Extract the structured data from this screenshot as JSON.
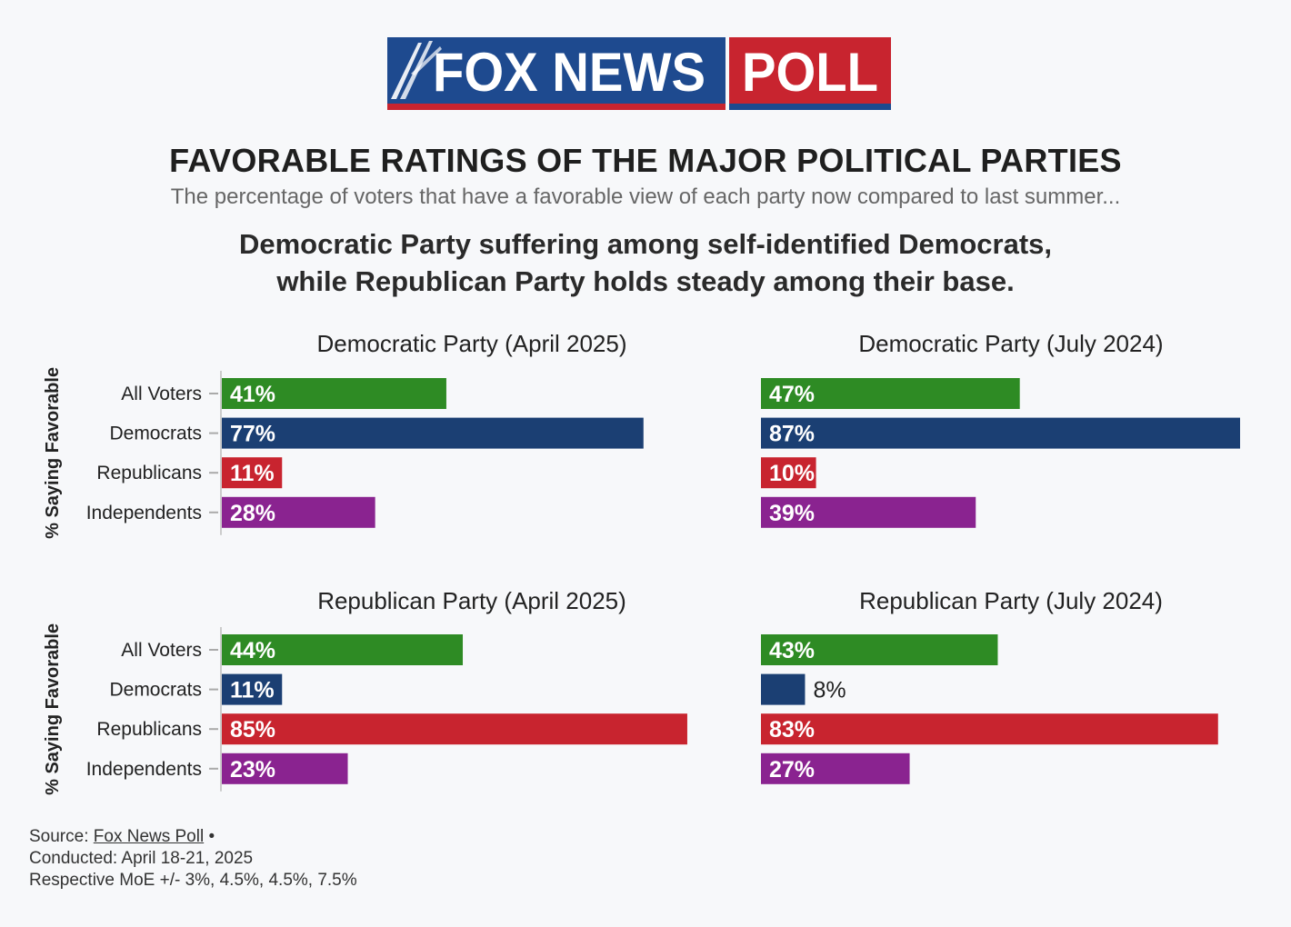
{
  "header": {
    "logo": {
      "part1": "FOX NEWS",
      "part2": "POLL"
    },
    "title": "FAVORABLE RATINGS OF THE MAJOR POLITICAL PARTIES",
    "subtitle": "The percentage of voters that have a favorable view of each party now compared to last summer...",
    "headline_line1": "Democratic Party suffering among self-identified Democrats,",
    "headline_line2": "while Republican Party holds steady among their base."
  },
  "colors": {
    "all_voters": "#2e8b24",
    "democrats": "#1b3f73",
    "republicans": "#c8242f",
    "independents": "#8a2390",
    "logo_blue": "#1e4a8f",
    "logo_red": "#c8242f"
  },
  "chart_data": [
    {
      "type": "bar",
      "orientation": "horizontal",
      "title": "Democratic Party (April 2025)",
      "ylabel": "% Saying Favorable",
      "categories": [
        "All Voters",
        "Democrats",
        "Republicans",
        "Independents"
      ],
      "values": [
        41,
        77,
        11,
        28
      ],
      "value_labels": [
        "41%",
        "77%",
        "11%",
        "28%"
      ],
      "xlim": [
        0,
        87
      ]
    },
    {
      "type": "bar",
      "orientation": "horizontal",
      "title": "Democratic Party (July 2024)",
      "ylabel": "",
      "categories": [
        "All Voters",
        "Democrats",
        "Republicans",
        "Independents"
      ],
      "values": [
        47,
        87,
        10,
        39
      ],
      "value_labels": [
        "47%",
        "87%",
        "10%",
        "39%"
      ],
      "xlim": [
        0,
        87
      ]
    },
    {
      "type": "bar",
      "orientation": "horizontal",
      "title": "Republican Party (April 2025)",
      "ylabel": "% Saying Favorable",
      "categories": [
        "All Voters",
        "Democrats",
        "Republicans",
        "Independents"
      ],
      "values": [
        44,
        11,
        85,
        23
      ],
      "value_labels": [
        "44%",
        "11%",
        "85%",
        "23%"
      ],
      "xlim": [
        0,
        87
      ]
    },
    {
      "type": "bar",
      "orientation": "horizontal",
      "title": "Republican Party (July 2024)",
      "ylabel": "",
      "categories": [
        "All Voters",
        "Democrats",
        "Republicans",
        "Independents"
      ],
      "values": [
        43,
        8,
        83,
        27
      ],
      "value_labels": [
        "43%",
        "8%",
        "83%",
        "27%"
      ],
      "xlim": [
        0,
        87
      ]
    }
  ],
  "footer": {
    "source_label": "Source: ",
    "source_link": "Fox News Poll",
    "source_sep": " •",
    "conducted": "Conducted: April 18-21, 2025",
    "moe": "Respective MoE +/- 3%, 4.5%, 4.5%, 7.5%"
  }
}
